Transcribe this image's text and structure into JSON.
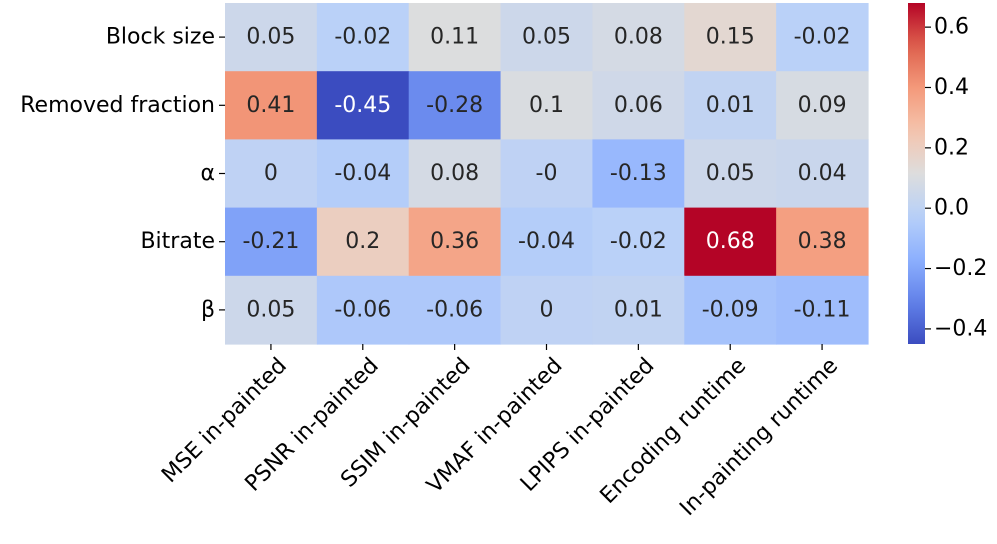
{
  "chart_data": {
    "type": "heatmap",
    "rows": [
      "Block size",
      "Removed fraction",
      "α",
      "Bitrate",
      "β"
    ],
    "columns": [
      "MSE in-painted",
      "PSNR in-painted",
      "SSIM in-painted",
      "VMAF in-painted",
      "LPIPS in-painted",
      "Encoding runtime",
      "In-painting runtime"
    ],
    "values": [
      [
        0.05,
        -0.02,
        0.11,
        0.05,
        0.08,
        0.15,
        -0.02
      ],
      [
        0.41,
        -0.45,
        -0.28,
        0.1,
        0.06,
        0.01,
        0.09
      ],
      [
        0,
        -0.04,
        0.08,
        0,
        -0.13,
        0.05,
        0.04
      ],
      [
        -0.21,
        0.2,
        0.36,
        -0.04,
        -0.02,
        0.68,
        0.38
      ],
      [
        0.05,
        -0.06,
        -0.06,
        0,
        0.01,
        -0.09,
        -0.11
      ]
    ],
    "cell_labels": [
      [
        "0.05",
        "-0.02",
        "0.11",
        "0.05",
        "0.08",
        "0.15",
        "-0.02"
      ],
      [
        "0.41",
        "-0.45",
        "-0.28",
        "0.1",
        "0.06",
        "0.01",
        "0.09"
      ],
      [
        "0",
        "-0.04",
        "0.08",
        "-0",
        "-0.13",
        "0.05",
        "0.04"
      ],
      [
        "-0.21",
        "0.2",
        "0.36",
        "-0.04",
        "-0.02",
        "0.68",
        "0.38"
      ],
      [
        "0.05",
        "-0.06",
        "-0.06",
        "0",
        "0.01",
        "-0.09",
        "-0.11"
      ]
    ],
    "colormap": "coolwarm",
    "vmin": -0.45,
    "vmax": 0.68,
    "colorbar": {
      "ticks": [
        -0.4,
        -0.2,
        0.0,
        0.2,
        0.4,
        0.6
      ],
      "tick_labels": [
        "−0.4",
        "−0.2",
        "0.0",
        "0.2",
        "0.4",
        "0.6"
      ]
    },
    "title": "",
    "xlabel": "",
    "ylabel": ""
  }
}
